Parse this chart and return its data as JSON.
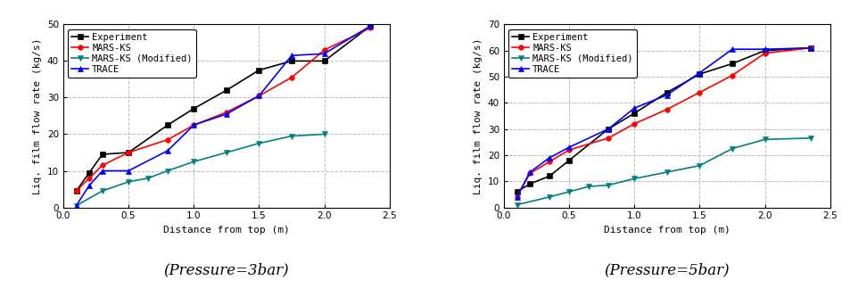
{
  "plot1": {
    "title": "(Pressure=3bar)",
    "xlabel": "Distance from top (m)",
    "ylabel": "Liq. film flow rate (kg/s)",
    "xlim": [
      0.0,
      2.5
    ],
    "ylim": [
      0,
      50
    ],
    "yticks": [
      0,
      10,
      20,
      30,
      40,
      50
    ],
    "xticks": [
      0.0,
      0.5,
      1.0,
      1.5,
      2.0,
      2.5
    ],
    "series": {
      "Experiment": {
        "x": [
          0.1,
          0.2,
          0.3,
          0.5,
          0.8,
          1.0,
          1.25,
          1.5,
          1.75,
          2.0,
          2.35
        ],
        "y": [
          4.5,
          9.5,
          14.5,
          15.0,
          22.5,
          27.0,
          32.0,
          37.5,
          40.0,
          40.0,
          49.5
        ],
        "color": "#000000",
        "marker": "s",
        "markersize": 4,
        "linewidth": 1.2
      },
      "MARS-KS": {
        "x": [
          0.1,
          0.2,
          0.3,
          0.5,
          0.8,
          1.0,
          1.25,
          1.5,
          1.75,
          2.0,
          2.35
        ],
        "y": [
          4.5,
          8.0,
          11.5,
          15.0,
          18.5,
          22.5,
          26.0,
          30.5,
          35.5,
          43.0,
          49.0
        ],
        "color": "#ff0000",
        "marker": "o",
        "markersize": 4,
        "linewidth": 1.2
      },
      "MARS-KS (Modified)": {
        "x": [
          0.1,
          0.3,
          0.5,
          0.65,
          0.8,
          1.0,
          1.25,
          1.5,
          1.75,
          2.0
        ],
        "y": [
          0.5,
          4.5,
          7.0,
          8.0,
          10.0,
          12.5,
          15.0,
          17.5,
          19.5,
          20.0
        ],
        "color": "#008080",
        "marker": "v",
        "markersize": 4,
        "linewidth": 1.2
      },
      "TRACE": {
        "x": [
          0.1,
          0.2,
          0.3,
          0.5,
          0.8,
          1.0,
          1.25,
          1.5,
          1.75,
          2.0,
          2.35
        ],
        "y": [
          0.5,
          6.0,
          10.0,
          10.0,
          15.5,
          22.5,
          25.5,
          30.5,
          41.5,
          42.0,
          49.5
        ],
        "color": "#0000ff",
        "marker": "^",
        "markersize": 4,
        "linewidth": 1.2
      }
    }
  },
  "plot2": {
    "title": "(Pressure=5bar)",
    "xlabel": "Distance from top (m)",
    "ylabel": "Liq. film flow rate (kg/s)",
    "xlim": [
      0.0,
      2.5
    ],
    "ylim": [
      0,
      70
    ],
    "yticks": [
      0,
      10,
      20,
      30,
      40,
      50,
      60,
      70
    ],
    "xticks": [
      0.0,
      0.5,
      1.0,
      1.5,
      2.0,
      2.5
    ],
    "series": {
      "Experiment": {
        "x": [
          0.1,
          0.2,
          0.35,
          0.5,
          0.8,
          1.0,
          1.25,
          1.5,
          1.75,
          2.0,
          2.35
        ],
        "y": [
          6.0,
          9.0,
          12.0,
          18.0,
          30.0,
          36.0,
          44.0,
          51.0,
          55.0,
          60.0,
          61.0
        ],
        "color": "#000000",
        "marker": "s",
        "markersize": 4,
        "linewidth": 1.2
      },
      "MARS-KS": {
        "x": [
          0.1,
          0.2,
          0.35,
          0.5,
          0.8,
          1.0,
          1.25,
          1.5,
          1.75,
          2.0,
          2.35
        ],
        "y": [
          4.0,
          13.0,
          17.5,
          22.0,
          26.5,
          32.0,
          37.5,
          44.0,
          50.5,
          59.0,
          61.0
        ],
        "color": "#ff0000",
        "marker": "o",
        "markersize": 4,
        "linewidth": 1.2
      },
      "MARS-KS (Modified)": {
        "x": [
          0.1,
          0.35,
          0.5,
          0.65,
          0.8,
          1.0,
          1.25,
          1.5,
          1.75,
          2.0,
          2.35
        ],
        "y": [
          1.0,
          4.0,
          6.0,
          8.0,
          8.5,
          11.0,
          13.5,
          16.0,
          22.5,
          26.0,
          26.5
        ],
        "color": "#008080",
        "marker": "v",
        "markersize": 4,
        "linewidth": 1.2
      },
      "TRACE": {
        "x": [
          0.1,
          0.2,
          0.35,
          0.5,
          0.8,
          1.0,
          1.25,
          1.5,
          1.75,
          2.0,
          2.35
        ],
        "y": [
          4.0,
          13.5,
          19.0,
          23.0,
          30.0,
          38.0,
          43.0,
          51.5,
          60.5,
          60.5,
          61.0
        ],
        "color": "#0000ff",
        "marker": "^",
        "markersize": 4,
        "linewidth": 1.2
      }
    }
  },
  "legend_order": [
    "Experiment",
    "MARS-KS",
    "MARS-KS (Modified)",
    "TRACE"
  ],
  "background_color": "#ffffff",
  "grid_color": "#bbbbbb",
  "title_fontsize": 12,
  "label_fontsize": 8,
  "tick_fontsize": 7.5,
  "legend_fontsize": 7.5
}
